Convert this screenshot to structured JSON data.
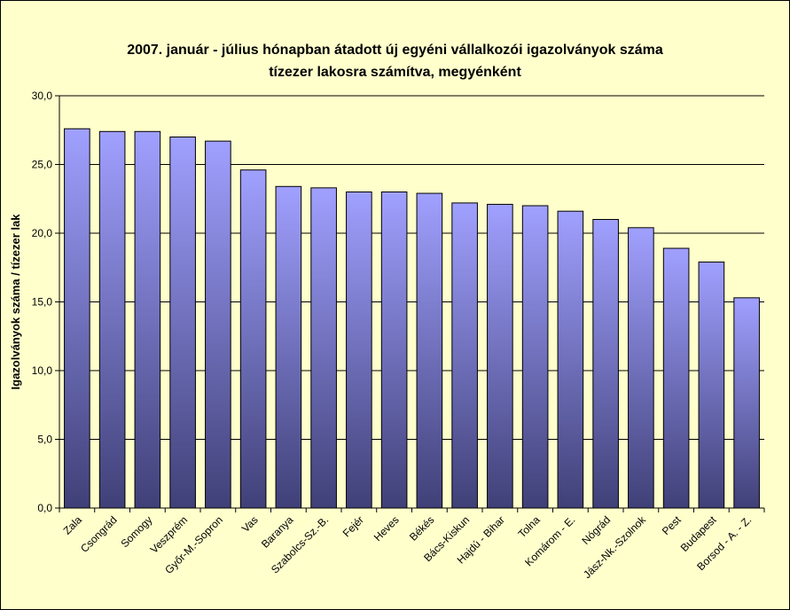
{
  "chart_data": {
    "type": "bar",
    "title_lines": [
      "2007. január - július hónapban átadott új egyéni vállalkozói  igazolványok száma",
      "tízezer lakosra számítva, megyénként"
    ],
    "ylabel": "Igazolványok száma / tízezer lak",
    "xlabel": "",
    "ylim": [
      0,
      30
    ],
    "y_ticks": [
      "0,0",
      "5,0",
      "10,0",
      "15,0",
      "20,0",
      "25,0",
      "30,0"
    ],
    "grid": "horizontal",
    "categories": [
      "Zala",
      "Csongrád",
      "Somogy",
      "Veszprém",
      "Győr-M.-Sopron",
      "Vas",
      "Baranya",
      "Szabolcs-Sz.-B.",
      "Fejér",
      "Heves",
      "Békés",
      "Bács-Kiskun",
      "Hajdú - Bihar",
      "Tolna",
      "Komárom - E.",
      "Nógrád",
      "Jász-Nk.-Szolnok",
      "Pest",
      "Budapest",
      "Borsod - A. - Z."
    ],
    "values": [
      27.6,
      27.4,
      27.4,
      27.0,
      26.7,
      24.6,
      23.4,
      23.3,
      23.0,
      23.0,
      22.9,
      22.2,
      22.1,
      22.0,
      21.6,
      21.0,
      20.4,
      18.9,
      17.9,
      15.3
    ],
    "colors": {
      "background": "#ffffcc",
      "plot_background": "#ffffcc",
      "bar_top": "#a0a0ff",
      "bar_bottom": "#404078",
      "grid": "#000000"
    }
  }
}
